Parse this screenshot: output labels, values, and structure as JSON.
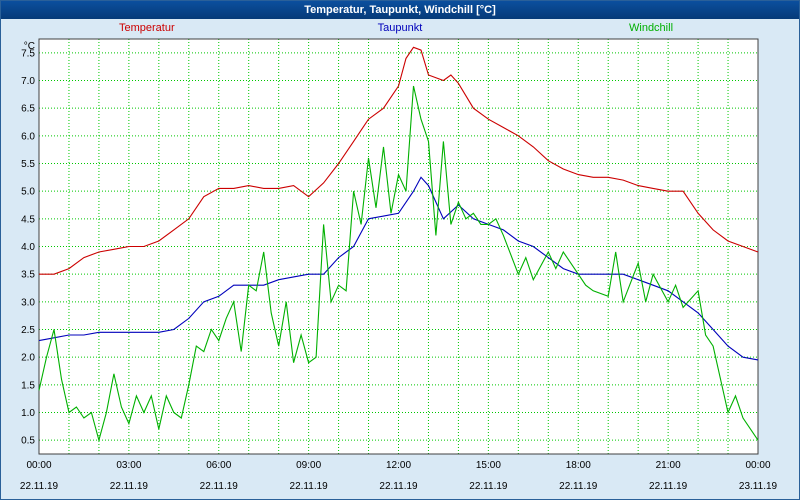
{
  "window": {
    "title": "Temperatur, Taupunkt, Windchill [°C]"
  },
  "legend": [
    {
      "label": "Temperatur",
      "color": "#cc0000"
    },
    {
      "label": "Taupunkt",
      "color": "#0000bb"
    },
    {
      "label": "Windchill",
      "color": "#00b000"
    }
  ],
  "chart_data": {
    "type": "line",
    "title": "Temperatur, Taupunkt, Windchill [°C]",
    "ylabel": "°C",
    "ylim": [
      0.25,
      7.75
    ],
    "yticks": [
      0.5,
      1.0,
      1.5,
      2.0,
      2.5,
      3.0,
      3.5,
      4.0,
      4.5,
      5.0,
      5.5,
      6.0,
      6.5,
      7.0,
      7.5
    ],
    "xlim_hours": [
      0,
      24
    ],
    "xticks": [
      {
        "hour": 0,
        "time": "00:00",
        "date": "22.11.19"
      },
      {
        "hour": 3,
        "time": "03:00",
        "date": "22.11.19"
      },
      {
        "hour": 6,
        "time": "06:00",
        "date": "22.11.19"
      },
      {
        "hour": 9,
        "time": "09:00",
        "date": "22.11.19"
      },
      {
        "hour": 12,
        "time": "12:00",
        "date": "22.11.19"
      },
      {
        "hour": 15,
        "time": "15:00",
        "date": "22.11.19"
      },
      {
        "hour": 18,
        "time": "18:00",
        "date": "22.11.19"
      },
      {
        "hour": 21,
        "time": "21:00",
        "date": "22.11.19"
      },
      {
        "hour": 24,
        "time": "00:00",
        "date": "23.11.19"
      }
    ],
    "grid": {
      "color": "#00c800",
      "x_step_hours": 1,
      "style": "dotted"
    },
    "plot_bg": "#ffffff",
    "series": [
      {
        "name": "Temperatur",
        "color": "#cc0000",
        "x": [
          0,
          0.5,
          1,
          1.5,
          2,
          2.5,
          3,
          3.5,
          4,
          4.5,
          5,
          5.5,
          6,
          6.5,
          7,
          7.5,
          8,
          8.5,
          9,
          9.5,
          10,
          10.5,
          11,
          11.5,
          12,
          12.25,
          12.5,
          12.75,
          13,
          13.5,
          13.75,
          14,
          14.5,
          15,
          15.5,
          16,
          16.5,
          17,
          17.5,
          18,
          18.5,
          19,
          19.5,
          20,
          20.5,
          21,
          21.5,
          22,
          22.5,
          23,
          23.5,
          24
        ],
        "values": [
          3.5,
          3.5,
          3.6,
          3.8,
          3.9,
          3.95,
          4.0,
          4.0,
          4.1,
          4.3,
          4.5,
          4.9,
          5.05,
          5.05,
          5.1,
          5.05,
          5.05,
          5.1,
          4.9,
          5.15,
          5.5,
          5.9,
          6.3,
          6.5,
          6.9,
          7.4,
          7.6,
          7.55,
          7.1,
          7.0,
          7.1,
          6.95,
          6.5,
          6.3,
          6.15,
          6.0,
          5.8,
          5.55,
          5.4,
          5.3,
          5.25,
          5.25,
          5.2,
          5.1,
          5.05,
          5.0,
          5.0,
          4.6,
          4.3,
          4.1,
          4.0,
          3.9
        ]
      },
      {
        "name": "Taupunkt",
        "color": "#0000bb",
        "x": [
          0,
          0.5,
          1,
          1.5,
          2,
          2.5,
          3,
          3.5,
          4,
          4.5,
          5,
          5.5,
          6,
          6.5,
          7,
          7.5,
          8,
          8.5,
          9,
          9.5,
          10,
          10.5,
          11,
          11.5,
          12,
          12.5,
          12.75,
          13,
          13.5,
          14,
          14.5,
          15,
          15.5,
          16,
          16.5,
          17,
          17.5,
          18,
          18.5,
          19,
          19.5,
          20,
          20.5,
          21,
          21.5,
          22,
          22.5,
          23,
          23.5,
          24
        ],
        "values": [
          2.3,
          2.35,
          2.4,
          2.4,
          2.45,
          2.45,
          2.45,
          2.45,
          2.45,
          2.5,
          2.7,
          3.0,
          3.1,
          3.3,
          3.3,
          3.3,
          3.4,
          3.45,
          3.5,
          3.5,
          3.8,
          4.0,
          4.5,
          4.55,
          4.6,
          5.0,
          5.25,
          5.1,
          4.5,
          4.75,
          4.5,
          4.4,
          4.3,
          4.1,
          4.0,
          3.8,
          3.6,
          3.5,
          3.5,
          3.5,
          3.5,
          3.4,
          3.3,
          3.2,
          3.0,
          2.8,
          2.5,
          2.2,
          2.0,
          1.95
        ]
      },
      {
        "name": "Windchill",
        "color": "#00b000",
        "x": [
          0,
          0.25,
          0.5,
          0.75,
          1,
          1.25,
          1.5,
          1.75,
          2,
          2.25,
          2.5,
          2.75,
          3,
          3.25,
          3.5,
          3.75,
          4,
          4.25,
          4.5,
          4.75,
          5,
          5.25,
          5.5,
          5.75,
          6,
          6.25,
          6.5,
          6.75,
          7,
          7.25,
          7.5,
          7.75,
          8,
          8.25,
          8.5,
          8.75,
          9,
          9.25,
          9.5,
          9.75,
          10,
          10.25,
          10.5,
          10.75,
          11,
          11.25,
          11.5,
          11.75,
          12,
          12.25,
          12.5,
          12.75,
          13,
          13.25,
          13.5,
          13.75,
          14,
          14.25,
          14.5,
          14.75,
          15,
          15.25,
          15.5,
          16,
          16.25,
          16.5,
          17,
          17.25,
          17.5,
          18,
          18.25,
          18.5,
          19,
          19.25,
          19.5,
          20,
          20.25,
          20.5,
          21,
          21.25,
          21.5,
          22,
          22.25,
          22.5,
          23,
          23.25,
          23.5,
          24
        ],
        "values": [
          1.4,
          2.0,
          2.5,
          1.6,
          1.0,
          1.1,
          0.9,
          1.0,
          0.5,
          1.0,
          1.7,
          1.1,
          0.8,
          1.3,
          1.0,
          1.3,
          0.7,
          1.3,
          1.0,
          0.9,
          1.5,
          2.2,
          2.1,
          2.5,
          2.3,
          2.7,
          3.0,
          2.1,
          3.3,
          3.2,
          3.9,
          2.8,
          2.2,
          3.0,
          1.9,
          2.4,
          1.9,
          2.0,
          4.4,
          3.0,
          3.3,
          3.2,
          5.0,
          4.4,
          5.6,
          4.7,
          5.8,
          4.6,
          5.3,
          5.0,
          6.9,
          6.3,
          5.9,
          4.2,
          5.9,
          4.4,
          4.8,
          4.5,
          4.6,
          4.4,
          4.4,
          4.5,
          4.2,
          3.5,
          3.8,
          3.4,
          3.9,
          3.6,
          3.9,
          3.5,
          3.3,
          3.2,
          3.1,
          3.9,
          3.0,
          3.7,
          3.0,
          3.5,
          3.0,
          3.3,
          2.9,
          3.2,
          2.4,
          2.2,
          1.0,
          1.3,
          0.9,
          0.5
        ]
      }
    ]
  }
}
